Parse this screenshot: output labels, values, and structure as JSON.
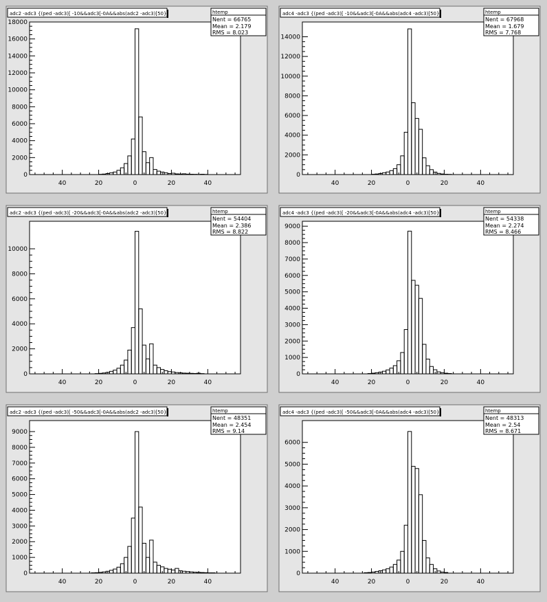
{
  "chart_data": [
    {
      "type": "bar",
      "title": "adc2 -adc3 {(ped -adc3)[ -10&&adc3[-0A&&abs(adc2 -adc3)[50}",
      "stats": {
        "header": "htemp",
        "entries": "Nent = 66765",
        "mean": "Mean = 2.179",
        "rms": "RMS = 8.023"
      },
      "xlim": [
        -58,
        58
      ],
      "ylim": [
        0,
        18000
      ],
      "yticks": [
        0,
        2000,
        4000,
        6000,
        8000,
        10000,
        12000,
        14000,
        16000,
        18000
      ],
      "xticks": [
        -40,
        -20,
        0,
        20,
        40
      ],
      "xtick_labels": [
        "40",
        "20",
        "0",
        "20",
        "40"
      ],
      "bin_width": 2,
      "bins": [
        [
          -20,
          30
        ],
        [
          -18,
          60
        ],
        [
          -16,
          120
        ],
        [
          -14,
          200
        ],
        [
          -12,
          300
        ],
        [
          -10,
          500
        ],
        [
          -8,
          800
        ],
        [
          -6,
          1300
        ],
        [
          -4,
          2200
        ],
        [
          -2,
          4200
        ],
        [
          0,
          17200
        ],
        [
          2,
          6800
        ],
        [
          4,
          2700
        ],
        [
          6,
          1400
        ],
        [
          8,
          2000
        ],
        [
          10,
          600
        ],
        [
          12,
          400
        ],
        [
          14,
          300
        ],
        [
          16,
          200
        ],
        [
          18,
          120
        ],
        [
          20,
          160
        ],
        [
          22,
          80
        ],
        [
          24,
          60
        ],
        [
          26,
          90
        ],
        [
          28,
          50
        ],
        [
          30,
          40
        ],
        [
          32,
          30
        ],
        [
          34,
          20
        ],
        [
          36,
          40
        ],
        [
          38,
          20
        ]
      ]
    },
    {
      "type": "bar",
      "title": "adc4 -adc3 {(ped -adc3)[ -10&&adc3[-0A&&abs(adc4 -adc3)[50}",
      "stats": {
        "header": "htemp",
        "entries": "Nent = 67968",
        "mean": "Mean = 1.679",
        "rms": "RMS = 7.768"
      },
      "xlim": [
        -58,
        58
      ],
      "ylim": [
        0,
        15500
      ],
      "yticks": [
        0,
        2000,
        4000,
        6000,
        8000,
        10000,
        12000,
        14000
      ],
      "xticks": [
        -40,
        -20,
        0,
        20,
        40
      ],
      "xtick_labels": [
        "40",
        "20",
        "0",
        "20",
        "40"
      ],
      "bin_width": 2,
      "bins": [
        [
          -20,
          30
        ],
        [
          -18,
          60
        ],
        [
          -16,
          110
        ],
        [
          -14,
          180
        ],
        [
          -12,
          260
        ],
        [
          -10,
          400
        ],
        [
          -8,
          600
        ],
        [
          -6,
          1000
        ],
        [
          -4,
          1900
        ],
        [
          -2,
          4300
        ],
        [
          0,
          14800
        ],
        [
          2,
          7300
        ],
        [
          4,
          5700
        ],
        [
          6,
          4600
        ],
        [
          8,
          1700
        ],
        [
          10,
          900
        ],
        [
          12,
          500
        ],
        [
          14,
          250
        ],
        [
          16,
          120
        ],
        [
          18,
          60
        ],
        [
          20,
          30
        ],
        [
          22,
          20
        ]
      ]
    },
    {
      "type": "bar",
      "title": "adc2 -adc3 {(ped -adc3)[ -20&&adc3[-0A&&abs(adc2 -adc3)[50}",
      "stats": {
        "header": "htemp",
        "entries": "Nent = 54404",
        "mean": "Mean = 2.386",
        "rms": "RMS = 8.822"
      },
      "xlim": [
        -58,
        58
      ],
      "ylim": [
        0,
        12200
      ],
      "yticks": [
        0,
        2000,
        4000,
        6000,
        8000,
        10000
      ],
      "xticks": [
        -40,
        -20,
        0,
        20,
        40
      ],
      "xtick_labels": [
        "40",
        "20",
        "0",
        "20",
        "40"
      ],
      "bin_width": 2,
      "bins": [
        [
          -22,
          20
        ],
        [
          -20,
          40
        ],
        [
          -18,
          70
        ],
        [
          -16,
          120
        ],
        [
          -14,
          200
        ],
        [
          -12,
          300
        ],
        [
          -10,
          450
        ],
        [
          -8,
          700
        ],
        [
          -6,
          1100
        ],
        [
          -4,
          1900
        ],
        [
          -2,
          3700
        ],
        [
          0,
          11400
        ],
        [
          2,
          5200
        ],
        [
          4,
          2300
        ],
        [
          6,
          1200
        ],
        [
          8,
          2400
        ],
        [
          10,
          700
        ],
        [
          12,
          500
        ],
        [
          14,
          350
        ],
        [
          16,
          250
        ],
        [
          18,
          180
        ],
        [
          20,
          150
        ],
        [
          22,
          100
        ],
        [
          24,
          80
        ],
        [
          26,
          60
        ],
        [
          28,
          50
        ],
        [
          30,
          40
        ],
        [
          32,
          30
        ],
        [
          34,
          50
        ],
        [
          36,
          20
        ]
      ]
    },
    {
      "type": "bar",
      "title": "adc4 -adc3 {(ped -adc3)[ -20&&adc3[-0A&&abs(adc4 -adc3)[50}",
      "stats": {
        "header": "htemp",
        "entries": "Nent = 54338",
        "mean": "Mean = 2.274",
        "rms": "RMS = 8.466"
      },
      "xlim": [
        -58,
        58
      ],
      "ylim": [
        0,
        9300
      ],
      "yticks": [
        0,
        1000,
        2000,
        3000,
        4000,
        5000,
        6000,
        7000,
        8000,
        9000
      ],
      "xticks": [
        -40,
        -20,
        0,
        20,
        40
      ],
      "xtick_labels": [
        "40",
        "20",
        "0",
        "20",
        "40"
      ],
      "bin_width": 2,
      "bins": [
        [
          -22,
          20
        ],
        [
          -20,
          40
        ],
        [
          -18,
          70
        ],
        [
          -16,
          110
        ],
        [
          -14,
          160
        ],
        [
          -12,
          240
        ],
        [
          -10,
          350
        ],
        [
          -8,
          500
        ],
        [
          -6,
          800
        ],
        [
          -4,
          1300
        ],
        [
          -2,
          2700
        ],
        [
          0,
          8700
        ],
        [
          2,
          5700
        ],
        [
          4,
          5400
        ],
        [
          6,
          4600
        ],
        [
          8,
          1800
        ],
        [
          10,
          900
        ],
        [
          12,
          450
        ],
        [
          14,
          250
        ],
        [
          16,
          120
        ],
        [
          18,
          70
        ],
        [
          20,
          40
        ],
        [
          22,
          20
        ]
      ]
    },
    {
      "type": "bar",
      "title": "adc2 -adc3 {(ped -adc3)[ -50&&adc3[-0A&&abs(adc2 -adc3)[50}",
      "stats": {
        "header": "htemp",
        "entries": "Nent = 48351",
        "mean": "Mean = 2.454",
        "rms": "RMS = 9.14"
      },
      "xlim": [
        -58,
        58
      ],
      "ylim": [
        0,
        9700
      ],
      "yticks": [
        0,
        1000,
        2000,
        3000,
        4000,
        5000,
        6000,
        7000,
        8000,
        9000
      ],
      "xticks": [
        -40,
        -20,
        0,
        20,
        40
      ],
      "xtick_labels": [
        "40",
        "20",
        "0",
        "20",
        "40"
      ],
      "bin_width": 2,
      "bins": [
        [
          -24,
          20
        ],
        [
          -22,
          30
        ],
        [
          -20,
          50
        ],
        [
          -18,
          80
        ],
        [
          -16,
          120
        ],
        [
          -14,
          180
        ],
        [
          -12,
          260
        ],
        [
          -10,
          380
        ],
        [
          -8,
          600
        ],
        [
          -6,
          1000
        ],
        [
          -4,
          1700
        ],
        [
          -2,
          3500
        ],
        [
          0,
          9000
        ],
        [
          2,
          4200
        ],
        [
          4,
          1900
        ],
        [
          6,
          1000
        ],
        [
          8,
          2100
        ],
        [
          10,
          700
        ],
        [
          12,
          500
        ],
        [
          14,
          400
        ],
        [
          16,
          300
        ],
        [
          18,
          250
        ],
        [
          20,
          200
        ],
        [
          22,
          300
        ],
        [
          24,
          150
        ],
        [
          26,
          120
        ],
        [
          28,
          100
        ],
        [
          30,
          80
        ],
        [
          32,
          60
        ],
        [
          34,
          50
        ],
        [
          36,
          40
        ],
        [
          38,
          30
        ],
        [
          40,
          20
        ],
        [
          42,
          20
        ]
      ]
    },
    {
      "type": "bar",
      "title": "adc4 -adc3 {(ped -adc3)[ -50&&adc3[-0A&&abs(adc4 -adc3)[50}",
      "stats": {
        "header": "htemp",
        "entries": "Nent = 48313",
        "mean": "Mean = 2.54",
        "rms": "RMS = 8.671"
      },
      "xlim": [
        -58,
        58
      ],
      "ylim": [
        0,
        7000
      ],
      "yticks": [
        0,
        1000,
        2000,
        3000,
        4000,
        5000,
        6000
      ],
      "xticks": [
        -40,
        -20,
        0,
        20,
        40
      ],
      "xtick_labels": [
        "40",
        "20",
        "0",
        "20",
        "40"
      ],
      "bin_width": 2,
      "bins": [
        [
          -24,
          20
        ],
        [
          -22,
          30
        ],
        [
          -20,
          50
        ],
        [
          -18,
          80
        ],
        [
          -16,
          110
        ],
        [
          -14,
          150
        ],
        [
          -12,
          200
        ],
        [
          -10,
          280
        ],
        [
          -8,
          400
        ],
        [
          -6,
          600
        ],
        [
          -4,
          1000
        ],
        [
          -2,
          2200
        ],
        [
          0,
          6500
        ],
        [
          2,
          4900
        ],
        [
          4,
          4800
        ],
        [
          6,
          3600
        ],
        [
          8,
          1500
        ],
        [
          10,
          700
        ],
        [
          12,
          400
        ],
        [
          14,
          200
        ],
        [
          16,
          100
        ],
        [
          18,
          50
        ],
        [
          20,
          30
        ]
      ]
    }
  ]
}
